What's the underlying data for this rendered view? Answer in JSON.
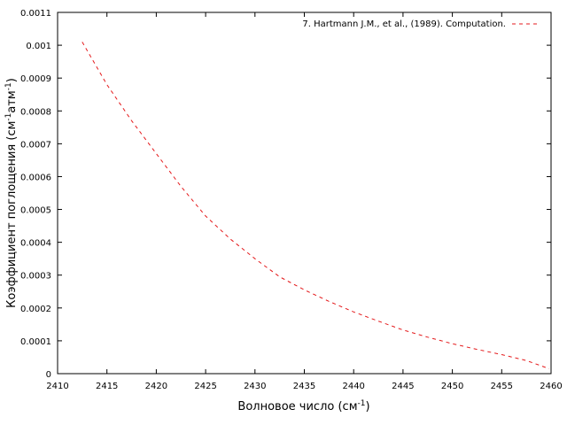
{
  "chart_data": {
    "type": "line",
    "xlabel": {
      "main": "Волновое число (см",
      "sup": "-1",
      "tail": ")"
    },
    "ylabel": {
      "main": "Коэффициент поглощения (см",
      "sup1": "-1",
      "mid": "атм",
      "sup2": "-1",
      "tail": ")"
    },
    "xlim": [
      2410,
      2460
    ],
    "ylim": [
      0,
      0.0011
    ],
    "x_ticks": [
      "2410",
      "2415",
      "2420",
      "2425",
      "2430",
      "2435",
      "2440",
      "2445",
      "2450",
      "2455",
      "2460"
    ],
    "y_ticks": [
      "0",
      "0.0001",
      "0.0002",
      "0.0003",
      "0.0004",
      "0.0005",
      "0.0006",
      "0.0007",
      "0.0008",
      "0.0009",
      "0.001",
      "0.0011"
    ],
    "grid": false,
    "legend_position": "top-right",
    "series": [
      {
        "name": "7. Hartmann J.M., et al., (1989). Computation.",
        "color": "#e41a1c",
        "line_style": "dashed",
        "x": [
          2412.5,
          2415,
          2417.5,
          2420,
          2422.5,
          2425,
          2427.5,
          2430,
          2432.5,
          2435,
          2437.5,
          2440,
          2442.5,
          2445,
          2447.5,
          2450,
          2452.5,
          2455,
          2457.5,
          2459.8
        ],
        "y": [
          0.00101,
          0.00088,
          0.00077,
          0.00067,
          0.00057,
          0.00048,
          0.00041,
          0.00035,
          0.000295,
          0.000255,
          0.00022,
          0.000188,
          0.00016,
          0.000133,
          0.000111,
          9.1e-05,
          7.4e-05,
          5.8e-05,
          4e-05,
          1.5e-05
        ]
      }
    ]
  }
}
